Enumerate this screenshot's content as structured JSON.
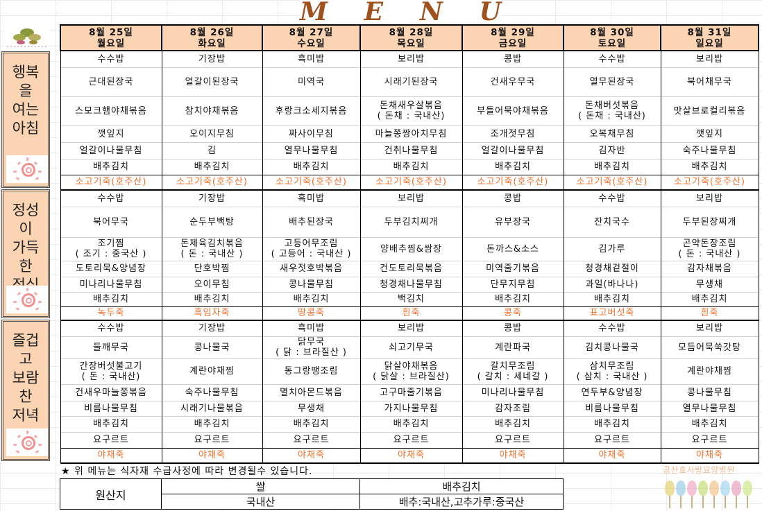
{
  "title_letters": [
    "M",
    "E",
    "N",
    "U"
  ],
  "days": [
    {
      "date": "8월 25일",
      "weekday": "월요일"
    },
    {
      "date": "8월 26일",
      "weekday": "화요일"
    },
    {
      "date": "8월 27일",
      "weekday": "수요일"
    },
    {
      "date": "8월 28일",
      "weekday": "목요일"
    },
    {
      "date": "8월 29일",
      "weekday": "금요일"
    },
    {
      "date": "8월 30일",
      "weekday": "토요일"
    },
    {
      "date": "8월 31일",
      "weekday": "일요일"
    }
  ],
  "sections": [
    {
      "label": "행복\n을\n여는\n아침",
      "rows": [
        [
          "수수밥",
          "기장밥",
          "흑미밥",
          "보리밥",
          "콩밥",
          "수수밥",
          "보리밥"
        ],
        [
          "근대된장국",
          "얼갈이된장국",
          "미역국",
          "시래기된장국",
          "건새우무국",
          "열무된장국",
          "북어채무국"
        ],
        [
          "스모크햄야채볶음",
          "참치야채볶음",
          "후랑크소세지볶음",
          "돈채새우살볶음\n( 돈채 : 국내산)",
          "부들어묵야채볶음",
          "돈채버섯볶음\n( 돈채 : 국내산)",
          "맛살브로컬리볶음"
        ],
        [
          "깻잎지",
          "오이지무침",
          "짜사이무침",
          "마늘쫑짱아치무침",
          "조개젓무침",
          "오복채무침",
          "깻잎지"
        ],
        [
          "얼갈이나물무침",
          "김",
          "열무나물무침",
          "건취나물무침",
          "얼갈이나물무침",
          "김자반",
          "숙주나물무침"
        ],
        [
          "배추김치",
          "배추김치",
          "배추김치",
          "배추김치",
          "배추김치",
          "배추김치",
          "배추김치"
        ],
        [
          "소고기죽(호주산)",
          "소고기죽(호주산)",
          "소고기죽(호주산)",
          "소고기죽(호주산)",
          "소고기죽(호주산)",
          "소고기죽(호주산)",
          "소고기죽(호주산)"
        ]
      ]
    },
    {
      "label": "정성\n이\n가득\n한\n점심",
      "rows": [
        [
          "수수밥",
          "기장밥",
          "흑미밥",
          "보리밥",
          "콩밥",
          "수수밥",
          "보리밥"
        ],
        [
          "북어무국",
          "순두부백탕",
          "배추된장국",
          "두부김치찌개",
          "유부장국",
          "잔치국수",
          "두부된장찌개"
        ],
        [
          "조기찜\n( 조기 : 중국산 )",
          "돈제육김치볶음\n( 돈 : 국내산 )",
          "고등어무조림\n( 고등어 : 국내산 )",
          "양배추찜&쌈장",
          "돈까스&소스",
          "김가루",
          "곤약돈장조림\n( 돈 : 국내산 )"
        ],
        [
          "도토리묵&양념장",
          "단호박찜",
          "새우젓호박볶음",
          "건도토리묵볶음",
          "미역줄기볶음",
          "청경채겉절이",
          "감자채볶음"
        ],
        [
          "미나리나물무침",
          "오이무침",
          "콩나물무침",
          "청경채나물무침",
          "단무지무침",
          "과일(바나나)",
          "무생채"
        ],
        [
          "배추김치",
          "배추김치",
          "배추김치",
          "백김치",
          "배추김치",
          "배추김치",
          "배추김치"
        ],
        [
          "녹두죽",
          "흑임자죽",
          "땅콩죽",
          "흰죽",
          "콩죽",
          "표고버섯죽",
          "흰죽"
        ]
      ]
    },
    {
      "label": "즐겁\n고\n보람\n찬\n저녁",
      "rows": [
        [
          "수수밥",
          "기장밥",
          "흑미밥",
          "보리밥",
          "콩밥",
          "수수밥",
          "보리밥"
        ],
        [
          "들깨무국",
          "콩나물국",
          "닭무국\n( 닭 : 브라질산 )",
          "쇠고기무국",
          "계란파국",
          "김치콩나물국",
          "모듬어묵쑥갓탕"
        ],
        [
          "간장버섯불고기\n( 돈 : 국내산)",
          "계란야채찜",
          "동그랑땡조림",
          "닭살야채볶음\n( 닭살 : 브라질산)",
          "갈치무조림\n( 갈치 : 세네갈 )",
          "삼치무조림\n( 삼치 : 국내산 )",
          "계란야채찜"
        ],
        [
          "건새우마늘쫑볶음",
          "숙주나물무침",
          "멸치아몬드볶음",
          "고구마줄기볶음",
          "미나리나물무침",
          "연두부&양념장",
          "콩나물무침"
        ],
        [
          "비름나물무침",
          "시래기나물볶음",
          "무생채",
          "가지나물무침",
          "감자조림",
          "비름나물무침",
          "열무나물무침"
        ],
        [
          "배추김치",
          "배추김치",
          "배추김치",
          "배추김치",
          "배추김치",
          "배추김치",
          "배추김치"
        ],
        [
          "요구르트",
          "요구르트",
          "요구르트",
          "요구르트",
          "요구르트",
          "요구르트",
          "요구르트"
        ],
        [
          "야채죽",
          "야채죽",
          "야채죽",
          "야채죽",
          "야채죽",
          "야채죽",
          "야채죽"
        ]
      ]
    }
  ],
  "note": "★ 위 메뉴는 식자재 수급사정에 따라 변경될수 있습니다.",
  "origin": {
    "label": "원산지",
    "items": [
      {
        "name": "쌀",
        "value": "국내산"
      },
      {
        "name": "배추김치",
        "value": "배추:국내산,고추가루:중국산"
      }
    ]
  },
  "hospital_name": "금산효사랑요양병원",
  "colors": {
    "header_bg": "#fbd4b4",
    "porridge_text": "#f0702a",
    "title": "#a0521e"
  }
}
